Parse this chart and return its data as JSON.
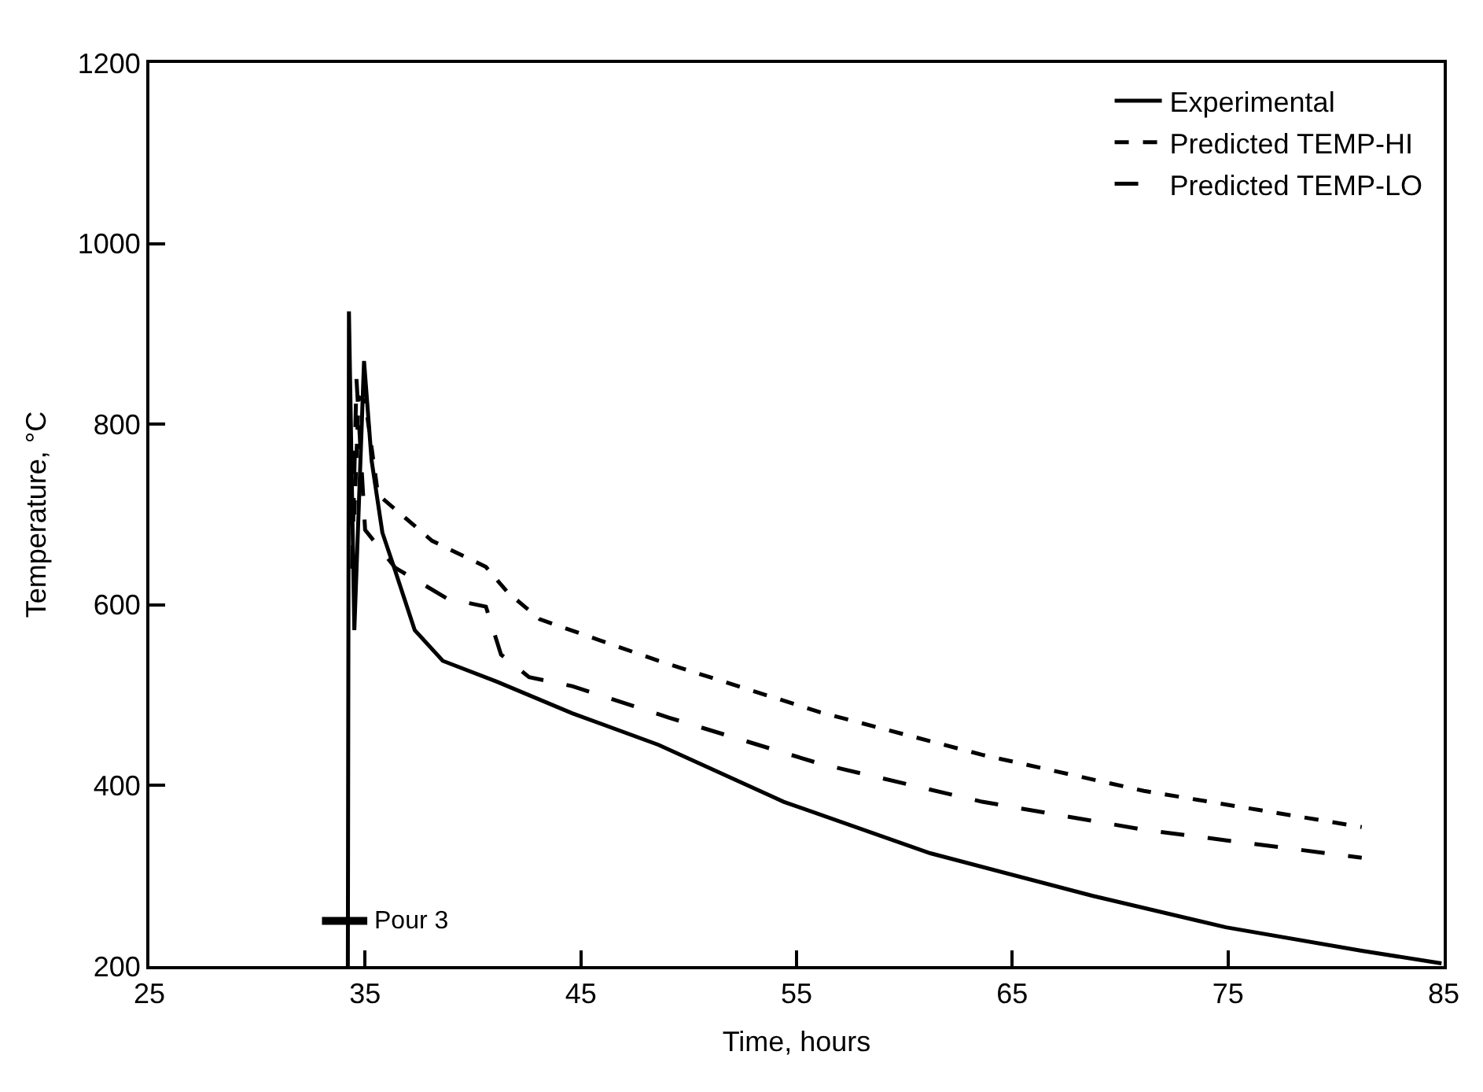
{
  "chart_data": {
    "type": "line",
    "xlabel": "Time, hours",
    "ylabel": "Temperature, °C",
    "xlim": [
      25,
      85
    ],
    "xticks": [
      25,
      35,
      45,
      55,
      65,
      75,
      85
    ],
    "ylim": [
      200,
      1200
    ],
    "yticks": [
      200,
      400,
      600,
      800,
      1000,
      1200
    ],
    "legend": "top right",
    "marker": "none",
    "annotations": [
      {
        "text": "Pour 3",
        "x": 35.3,
        "y": 250
      }
    ],
    "series": [
      {
        "name": "Experimental",
        "color": "#000000",
        "line_style": "solid",
        "x": [
          34.2,
          34.25,
          34.5,
          34.95,
          35.3,
          35.8,
          36.35,
          37.3,
          38.6,
          41.1,
          44.6,
          48.6,
          54.4,
          61.2,
          68.7,
          74.9,
          81.2,
          84.9
        ],
        "values": [
          200,
          925,
          572,
          870,
          760,
          680,
          641,
          572,
          538,
          515,
          480,
          445,
          382,
          325,
          278,
          243,
          217,
          203
        ]
      },
      {
        "name": "Predicted TEMP-HI",
        "color": "#000000",
        "line_style": "dashed",
        "x": [
          34.5,
          34.7,
          35.0,
          35.6,
          38.1,
          40.6,
          41.6,
          43.1,
          48.6,
          56.1,
          63.6,
          71.1,
          81.2
        ],
        "values": [
          700,
          830,
          826,
          722,
          671,
          642,
          614,
          584,
          538,
          481,
          434,
          394,
          354
        ]
      },
      {
        "name": "Predicted TEMP-LO",
        "color": "#000000",
        "line_style": "dashed",
        "x": [
          34.4,
          34.6,
          35.0,
          36.4,
          38.8,
          40.6,
          41.3,
          42.6,
          44.6,
          49.1,
          56.1,
          63.6,
          71.1,
          81.2
        ],
        "values": [
          640,
          850,
          683,
          641,
          607,
          598,
          545,
          520,
          510,
          475,
          424,
          382,
          351,
          320
        ]
      },
      {
        "color": "#000000",
        "line_style": "solid",
        "x": [
          33.0,
          35.1
        ],
        "values": [
          250,
          250
        ]
      }
    ]
  }
}
